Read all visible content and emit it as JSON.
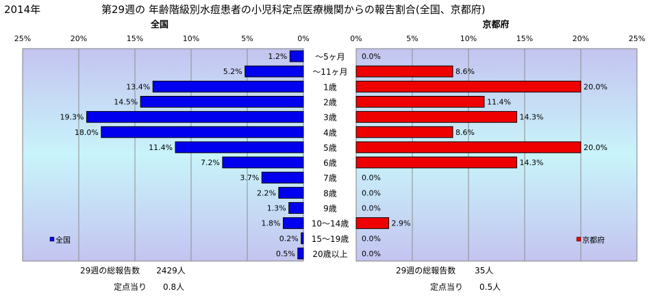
{
  "year_label": "2014年",
  "title": "第29週の 年齢階級別水痘患者の小児科定点医療機関からの報告割合(全国、京都府)",
  "chart_data": {
    "type": "bar",
    "orientation": "horizontal",
    "categories": [
      "～5ヶ月",
      "～11ヶ月",
      "1歳",
      "2歳",
      "3歳",
      "4歳",
      "5歳",
      "6歳",
      "7歳",
      "8歳",
      "9歳",
      "10～14歳",
      "15～19歳",
      "20歳以上"
    ],
    "xlim": [
      0,
      25
    ],
    "ticks": [
      "25%",
      "20%",
      "15%",
      "10%",
      "5%",
      "0%"
    ],
    "ticks_right": [
      "0%",
      "5%",
      "10%",
      "15%",
      "20%",
      "25%"
    ],
    "grid": true,
    "panels": [
      {
        "title": "全国",
        "legend": "全国",
        "legend_position": "bottom-left",
        "color": "#0000ee",
        "direction": "left",
        "values": [
          1.2,
          5.2,
          13.4,
          14.5,
          19.3,
          18.0,
          11.4,
          7.2,
          3.7,
          2.2,
          1.3,
          1.8,
          0.2,
          0.5
        ],
        "labels": [
          "1.2%",
          "5.2%",
          "13.4%",
          "14.5%",
          "19.3%",
          "18.0%",
          "11.4%",
          "7.2%",
          "3.7%",
          "2.2%",
          "1.3%",
          "1.8%",
          "0.2%",
          "0.5%"
        ]
      },
      {
        "title": "京都府",
        "legend": "京都府",
        "legend_position": "bottom-right",
        "color": "#ee0000",
        "direction": "right",
        "values": [
          0.0,
          8.6,
          20.0,
          11.4,
          14.3,
          8.6,
          20.0,
          14.3,
          0.0,
          0.0,
          0.0,
          2.9,
          0.0,
          0.0
        ],
        "labels": [
          "0.0%",
          "8.6%",
          "20.0%",
          "11.4%",
          "14.3%",
          "8.6%",
          "20.0%",
          "14.3%",
          "0.0%",
          "0.0%",
          "0.0%",
          "2.9%",
          "0.0%",
          "0.0%"
        ]
      }
    ]
  },
  "footer": {
    "national_total": "29週の総報告数　　2429人",
    "national_per_site": "定点当り　　0.8人",
    "kyoto_total": "29週の総報告数　　 35人",
    "kyoto_per_site": "定点当り　　0.5人"
  }
}
